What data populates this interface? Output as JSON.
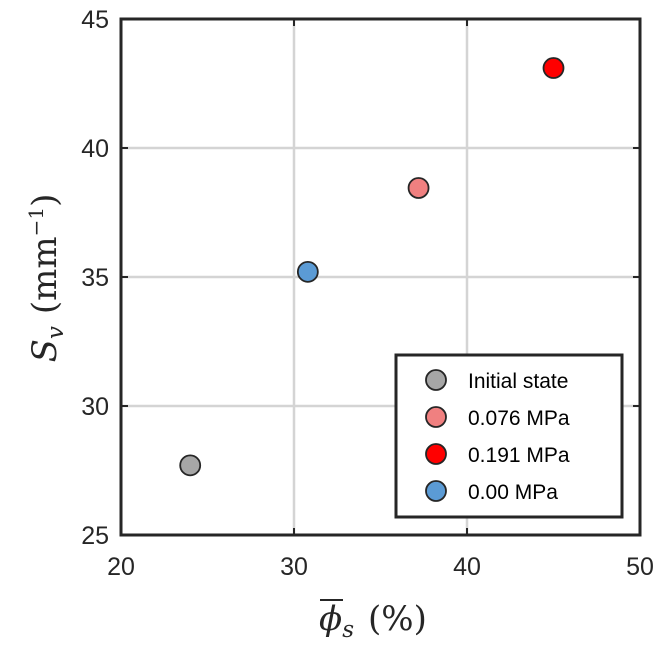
{
  "chart_data": {
    "type": "scatter",
    "title": "",
    "xlabel": {
      "symbol": "ϕ",
      "subscript": "s",
      "unit": "(%)"
    },
    "ylabel": {
      "symbol": "S",
      "subscript": "v",
      "unit_base": "(mm",
      "unit_exp": "−1",
      "unit_close": ")"
    },
    "xlim": [
      20,
      50
    ],
    "ylim": [
      25,
      45
    ],
    "xticks": [
      "20",
      "30",
      "40",
      "50"
    ],
    "yticks": [
      "25",
      "30",
      "35",
      "40",
      "45"
    ],
    "grid": true,
    "legend_position": "bottom-right",
    "series": [
      {
        "name": "Initial state",
        "color": "#a6a6a6",
        "points": [
          [
            24.0,
            27.7
          ]
        ]
      },
      {
        "name": "0.076 MPa",
        "color": "#f08080",
        "points": [
          [
            37.2,
            38.45
          ]
        ]
      },
      {
        "name": "0.191 MPa",
        "color": "#ff0000",
        "points": [
          [
            45.0,
            43.1
          ]
        ]
      },
      {
        "name": "0.00 MPa",
        "color": "#5b9bd5",
        "points": [
          [
            30.8,
            35.2
          ]
        ]
      }
    ]
  }
}
